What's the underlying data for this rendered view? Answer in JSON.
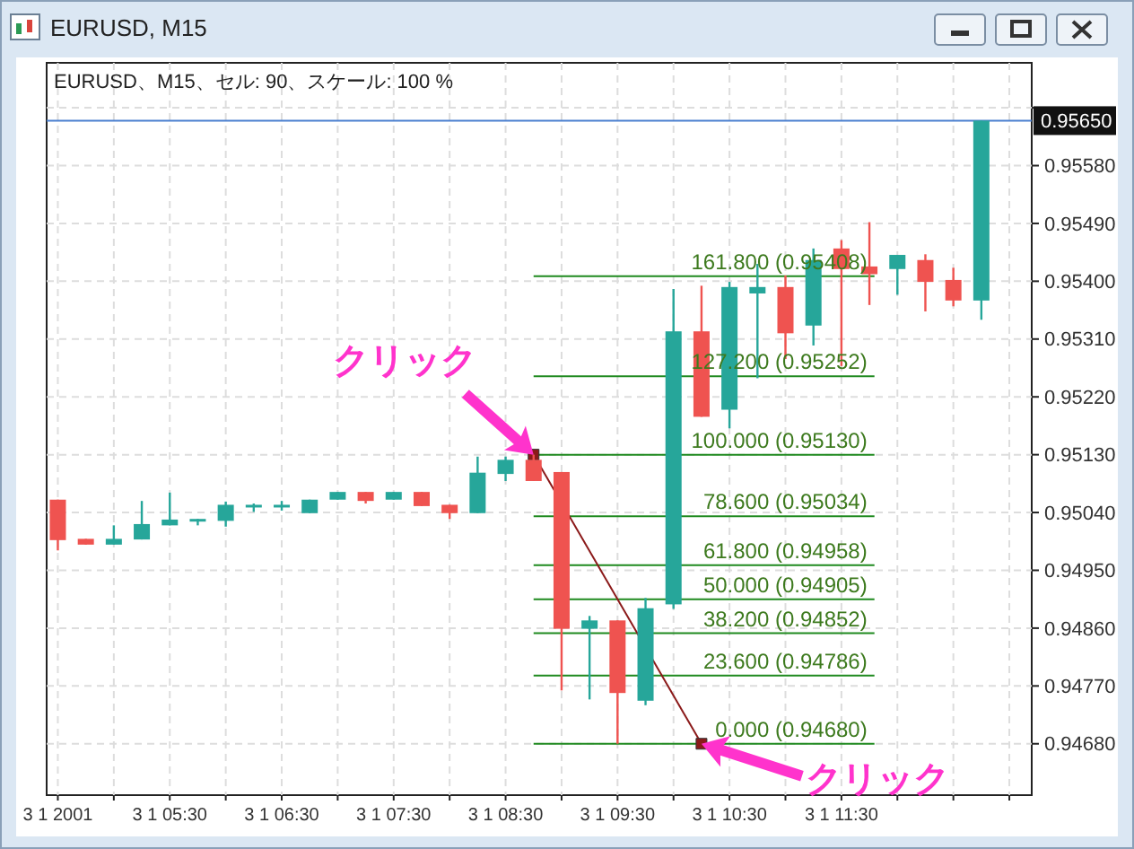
{
  "chart_data": {
    "type": "candlestick",
    "title": "EURUSD、M15、セル: 90、スケール: 100 %",
    "subtitle": "EURUSD, M15",
    "x": [
      "2001-01-03T04:30",
      "2001-01-03T04:45",
      "2001-01-03T05:00",
      "2001-01-03T05:15",
      "2001-01-03T05:30",
      "2001-01-03T05:45",
      "2001-01-03T06:00",
      "2001-01-03T06:15",
      "2001-01-03T06:30",
      "2001-01-03T06:45",
      "2001-01-03T07:00",
      "2001-01-03T07:15",
      "2001-01-03T07:30",
      "2001-01-03T07:45",
      "2001-01-03T08:00",
      "2001-01-03T08:15",
      "2001-01-03T08:30",
      "2001-01-03T08:45",
      "2001-01-03T09:00",
      "2001-01-03T09:15",
      "2001-01-03T09:30",
      "2001-01-03T09:45",
      "2001-01-03T10:00",
      "2001-01-03T10:15",
      "2001-01-03T10:30",
      "2001-01-03T10:45",
      "2001-01-03T11:00",
      "2001-01-03T11:15",
      "2001-01-03T11:30",
      "2001-01-03T11:45",
      "2001-01-03T12:00",
      "2001-01-03T12:15",
      "2001-01-03T12:30",
      "2001-01-03T12:45"
    ],
    "ohlc": [
      [
        0.9506,
        0.9506,
        0.94981,
        0.94997
      ],
      [
        0.94999,
        0.94999,
        0.9499,
        0.9499
      ],
      [
        0.9499,
        0.9502,
        0.9499,
        0.94999
      ],
      [
        0.94998,
        0.95058,
        0.94998,
        0.95022
      ],
      [
        0.9502,
        0.95071,
        0.9502,
        0.95029
      ],
      [
        0.95027,
        0.9503,
        0.9502,
        0.9503
      ],
      [
        0.95027,
        0.95057,
        0.95018,
        0.95052
      ],
      [
        0.95051,
        0.95054,
        0.95041,
        0.95052
      ],
      [
        0.95051,
        0.95058,
        0.95043,
        0.95052
      ],
      [
        0.95039,
        0.9506,
        0.95039,
        0.9506
      ],
      [
        0.9506,
        0.95072,
        0.9506,
        0.95072
      ],
      [
        0.95072,
        0.95072,
        0.95054,
        0.95058
      ],
      [
        0.9506,
        0.95072,
        0.9506,
        0.95072
      ],
      [
        0.95072,
        0.95072,
        0.9505,
        0.9505
      ],
      [
        0.95052,
        0.95052,
        0.9503,
        0.95039
      ],
      [
        0.95039,
        0.95127,
        0.95039,
        0.95102
      ],
      [
        0.951,
        0.95127,
        0.95089,
        0.95122
      ],
      [
        0.95122,
        0.9513,
        0.95089,
        0.95089
      ],
      [
        0.95103,
        0.95103,
        0.94763,
        0.94859
      ],
      [
        0.94859,
        0.94879,
        0.94749,
        0.94872
      ],
      [
        0.94872,
        0.94872,
        0.9468,
        0.94759
      ],
      [
        0.94747,
        0.94907,
        0.9474,
        0.94891
      ],
      [
        0.94897,
        0.95388,
        0.9489,
        0.95322
      ],
      [
        0.95322,
        0.95393,
        0.95189,
        0.95189
      ],
      [
        0.952,
        0.95399,
        0.95171,
        0.95391
      ],
      [
        0.95381,
        0.95427,
        0.95249,
        0.95391
      ],
      [
        0.95391,
        0.95409,
        0.95279,
        0.95319
      ],
      [
        0.95331,
        0.95451,
        0.953,
        0.95433
      ],
      [
        0.95451,
        0.95464,
        0.95268,
        0.95419
      ],
      [
        0.95423,
        0.95492,
        0.95363,
        0.95411
      ],
      [
        0.95419,
        0.95441,
        0.95379,
        0.95441
      ],
      [
        0.95433,
        0.95442,
        0.95353,
        0.95399
      ],
      [
        0.95402,
        0.95421,
        0.95361,
        0.9537
      ],
      [
        0.9537,
        0.9565,
        0.9534,
        0.9565
      ]
    ],
    "colors": [
      "#ef5350",
      "#ef5350",
      "#26a69a",
      "#26a69a",
      "#26a69a",
      "#26a69a",
      "#26a69a",
      "#26a69a",
      "#26a69a",
      "#26a69a",
      "#26a69a",
      "#ef5350",
      "#26a69a",
      "#ef5350",
      "#ef5350",
      "#26a69a",
      "#26a69a",
      "#ef5350",
      "#ef5350",
      "#26a69a",
      "#ef5350",
      "#26a69a",
      "#26a69a",
      "#ef5350",
      "#26a69a",
      "#26a69a",
      "#ef5350",
      "#26a69a",
      "#ef5350",
      "#ef5350",
      "#26a69a",
      "#ef5350",
      "#ef5350",
      "#26a69a"
    ],
    "series": [
      {
        "type": "line",
        "x": [
          "2001-01-03T08:45",
          "2001-01-03T10:15"
        ],
        "values": [
          0.9513,
          0.9468
        ],
        "color": "#8b1a1a"
      }
    ],
    "marker": "square",
    "xlim": [
      "2001-01-03T04:24",
      "2001-01-03T13:12"
    ],
    "xticks": [
      {
        "value": "2001-01-03T04:30",
        "label": "3 1 2001"
      },
      {
        "value": "2001-01-03T05:00",
        "label": null
      },
      {
        "value": "2001-01-03T05:30",
        "label": "3 1 05:30"
      },
      {
        "value": "2001-01-03T06:00",
        "label": null
      },
      {
        "value": "2001-01-03T06:30",
        "label": "3 1 06:30"
      },
      {
        "value": "2001-01-03T07:00",
        "label": null
      },
      {
        "value": "2001-01-03T07:30",
        "label": "3 1 07:30"
      },
      {
        "value": "2001-01-03T08:00",
        "label": null
      },
      {
        "value": "2001-01-03T08:30",
        "label": "3 1 08:30"
      },
      {
        "value": "2001-01-03T09:00",
        "label": null
      },
      {
        "value": "2001-01-03T09:30",
        "label": "3 1 09:30"
      },
      {
        "value": "2001-01-03T10:00",
        "label": null
      },
      {
        "value": "2001-01-03T10:30",
        "label": "3 1 10:30"
      },
      {
        "value": "2001-01-03T11:00",
        "label": null
      },
      {
        "value": "2001-01-03T11:30",
        "label": "3 1 11:30"
      },
      {
        "value": "2001-01-03T12:00",
        "label": null
      },
      {
        "value": "2001-01-03T12:30",
        "label": null
      },
      {
        "value": "2001-01-03T13:00",
        "label": null
      }
    ],
    "ylim": [
      0.946,
      0.9574
    ],
    "yticks": [
      {
        "value": 0.9468,
        "label": "0.94680"
      },
      {
        "value": 0.9477,
        "label": "0.94770"
      },
      {
        "value": 0.9486,
        "label": "0.94860"
      },
      {
        "value": 0.9495,
        "label": "0.94950"
      },
      {
        "value": 0.9504,
        "label": "0.95040"
      },
      {
        "value": 0.9513,
        "label": "0.95130"
      },
      {
        "value": 0.9522,
        "label": "0.95220"
      },
      {
        "value": 0.9531,
        "label": "0.95310"
      },
      {
        "value": 0.954,
        "label": "0.95400"
      },
      {
        "value": 0.9549,
        "label": "0.95490"
      },
      {
        "value": 0.9558,
        "label": "0.95580"
      },
      {
        "value": 0.9567,
        "label": null
      }
    ],
    "grid": true,
    "ref_lines": [
      {
        "axis": "y",
        "value": 0.9565,
        "label": "0.95650",
        "color": "#4a7fd0"
      },
      {
        "axis": "y",
        "value": 0.95408,
        "label": "161.800 (0.95408)",
        "color": "#1f8a1f"
      },
      {
        "axis": "y",
        "value": 0.95252,
        "label": "127.200 (0.95252)",
        "color": "#1f8a1f"
      },
      {
        "axis": "y",
        "value": 0.9513,
        "label": "100.000 (0.95130)",
        "color": "#1f8a1f"
      },
      {
        "axis": "y",
        "value": 0.95034,
        "label": "78.600 (0.95034)",
        "color": "#1f8a1f"
      },
      {
        "axis": "y",
        "value": 0.94958,
        "label": "61.800 (0.94958)",
        "color": "#1f8a1f"
      },
      {
        "axis": "y",
        "value": 0.94905,
        "label": "50.000 (0.94905)",
        "color": "#1f8a1f"
      },
      {
        "axis": "y",
        "value": 0.94852,
        "label": "38.200 (0.94852)",
        "color": "#1f8a1f"
      },
      {
        "axis": "y",
        "value": 0.94786,
        "label": "23.600 (0.94786)",
        "color": "#1f8a1f"
      },
      {
        "axis": "y",
        "value": 0.9468,
        "label": "0.000 (0.94680)",
        "color": "#1f8a1f"
      }
    ],
    "annotations": [
      {
        "text": "クリック",
        "x": "2001-01-03T08:45",
        "y": 0.9513
      },
      {
        "text": "クリック",
        "x": "2001-01-03T10:15",
        "y": 0.9468
      }
    ]
  }
}
